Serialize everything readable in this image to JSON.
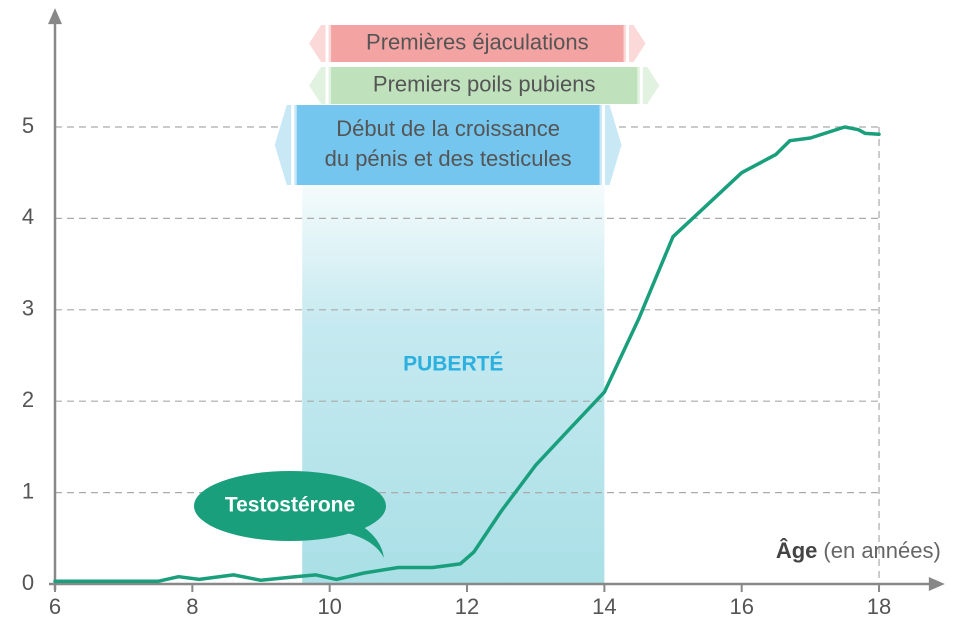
{
  "chart_data": {
    "type": "line",
    "x": [
      6,
      7,
      7.5,
      7.8,
      8.1,
      8.6,
      9,
      9.5,
      9.8,
      10.1,
      10.5,
      11,
      11.5,
      11.9,
      12.1,
      12.5,
      13,
      13.5,
      14,
      14.5,
      15,
      15.5,
      16,
      16.5,
      16.7,
      17,
      17.5,
      17.7,
      17.8,
      18
    ],
    "series": [
      {
        "name": "Testostérone",
        "color": "#1a9f7d",
        "values": [
          0.03,
          0.03,
          0.03,
          0.08,
          0.05,
          0.1,
          0.04,
          0.08,
          0.1,
          0.05,
          0.12,
          0.18,
          0.18,
          0.22,
          0.35,
          0.8,
          1.3,
          1.7,
          2.1,
          2.9,
          3.8,
          4.15,
          4.5,
          4.7,
          4.85,
          4.88,
          5.0,
          4.97,
          4.93,
          4.92
        ]
      }
    ],
    "xlim": [
      6,
      18.9
    ],
    "ylim": [
      0,
      6.3
    ],
    "xticks": [
      6,
      8,
      10,
      12,
      14,
      16,
      18
    ],
    "yticks": [
      0,
      1,
      2,
      3,
      4,
      5
    ],
    "grid": true,
    "x_label": "Âge",
    "x_label_unit": "(en années)",
    "puberty": {
      "label": "PUBERTÉ",
      "start": 9.6,
      "end": 14
    },
    "ranges": [
      {
        "lines": [
          "Premières éjaculations"
        ],
        "start": 9.7,
        "end": 14.6,
        "color": "#f4a3a3",
        "light": "#fbd9d9"
      },
      {
        "lines": [
          "Premiers poils pubiens"
        ],
        "start": 9.7,
        "end": 14.8,
        "color": "#bfe2bd",
        "light": "#e2f2e1"
      },
      {
        "lines": [
          "Début de la croissance",
          "du pénis et des testicules"
        ],
        "start": 9.2,
        "end": 14.25,
        "color": "#74c6ee",
        "light": "#c9e8f6"
      }
    ]
  }
}
